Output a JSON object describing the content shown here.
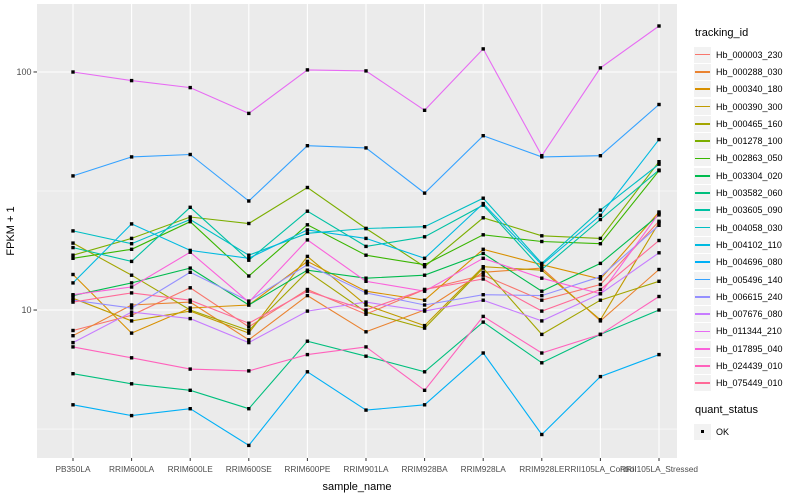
{
  "chart_data": {
    "type": "line",
    "title": "",
    "xlabel": "sample_name",
    "ylabel": "FPKM + 1",
    "y_scale": "log10",
    "ylim": [
      2.39,
      193
    ],
    "y_ticks": [
      10,
      100
    ],
    "y_minor_ticks": [
      3.162,
      31.62
    ],
    "grid": true,
    "legend_position": "right",
    "categories": [
      "PB350LA",
      "RRIM600LA",
      "RRIM600LE",
      "RRIM600SE",
      "RRIM600PE",
      "RRIM901LA",
      "RRIM928BA",
      "RRIM928LA",
      "RRIM928LE",
      "RRII105LA_Control",
      "RRII105LA_Stressed"
    ],
    "color_legend": {
      "title": "tracking_id"
    },
    "shape_legend": {
      "title": "quant_status",
      "items": [
        "OK"
      ]
    },
    "series": [
      {
        "name": "Hb_000003_230",
        "color": "#F8766D",
        "values": [
          8.2,
          9.5,
          12.4,
          8.5,
          12.2,
          9.6,
          12.2,
          14.0,
          11.0,
          12.8,
          23.6
        ]
      },
      {
        "name": "Hb_000288_030",
        "color": "#EA8331",
        "values": [
          7.8,
          10.5,
          10.8,
          7.5,
          11.5,
          8.1,
          10.0,
          14.4,
          15.0,
          9.0,
          14.8
        ]
      },
      {
        "name": "Hb_000340_180",
        "color": "#D89000",
        "values": [
          14.1,
          8.0,
          10.2,
          10.5,
          16.0,
          12.0,
          11.0,
          18.0,
          15.5,
          13.5,
          25.8
        ]
      },
      {
        "name": "Hb_000390_300",
        "color": "#C09B00",
        "values": [
          11.2,
          9.0,
          9.9,
          8.0,
          16.8,
          10.5,
          8.6,
          15.2,
          14.7,
          9.1,
          23.3
        ]
      },
      {
        "name": "Hb_000465_160",
        "color": "#A3A500",
        "values": [
          19.1,
          14.0,
          10.0,
          8.2,
          14.5,
          9.8,
          8.4,
          15.0,
          7.9,
          11.0,
          13.2
        ]
      },
      {
        "name": "Hb_001278_100",
        "color": "#7CAE00",
        "values": [
          17.0,
          20.0,
          24.6,
          23.1,
          32.7,
          22.0,
          15.2,
          24.4,
          20.5,
          20.0,
          42.0
        ]
      },
      {
        "name": "Hb_002863_050",
        "color": "#39B600",
        "values": [
          16.5,
          18.0,
          23.5,
          13.9,
          22.8,
          17.0,
          15.5,
          20.7,
          19.4,
          19.0,
          38.5
        ]
      },
      {
        "name": "Hb_003304_020",
        "color": "#00BB4E",
        "values": [
          11.5,
          13.0,
          15.0,
          10.5,
          14.7,
          13.6,
          14.0,
          17.3,
          12.0,
          15.7,
          25.1
        ]
      },
      {
        "name": "Hb_003582_060",
        "color": "#00BF7D",
        "values": [
          5.4,
          4.9,
          4.6,
          3.85,
          7.4,
          6.4,
          5.5,
          8.9,
          6.0,
          7.9,
          10.0
        ]
      },
      {
        "name": "Hb_003605_090",
        "color": "#00C1A3",
        "values": [
          18.3,
          16.0,
          27.0,
          16.2,
          26.0,
          18.5,
          20.3,
          27.6,
          14.8,
          24.0,
          38.7
        ]
      },
      {
        "name": "Hb_004058_030",
        "color": "#00BFC4",
        "values": [
          21.5,
          19.0,
          24.0,
          17.0,
          21.0,
          22.0,
          22.4,
          29.5,
          15.7,
          26.3,
          41.0
        ]
      },
      {
        "name": "Hb_004102_110",
        "color": "#00BAE0",
        "values": [
          13.0,
          23.0,
          17.8,
          16.5,
          21.7,
          20.0,
          16.5,
          28.0,
          15.5,
          25.0,
          52.0
        ]
      },
      {
        "name": "Hb_004696_080",
        "color": "#00B0F6",
        "values": [
          4.0,
          3.6,
          3.85,
          2.7,
          5.5,
          3.8,
          4.0,
          6.6,
          3.0,
          5.25,
          6.5
        ]
      },
      {
        "name": "Hb_005496_140",
        "color": "#35A2FF",
        "values": [
          36.6,
          44.0,
          45.0,
          28.7,
          49.0,
          48.0,
          31.0,
          54.0,
          44.0,
          44.5,
          73.0
        ]
      },
      {
        "name": "Hb_006615_240",
        "color": "#9590FF",
        "values": [
          11.0,
          10.2,
          14.4,
          10.9,
          15.5,
          11.8,
          10.5,
          11.6,
          11.5,
          13.8,
          22.7
        ]
      },
      {
        "name": "Hb_007676_080",
        "color": "#C77CFF",
        "values": [
          7.3,
          9.8,
          9.2,
          7.3,
          9.9,
          10.8,
          9.9,
          11.0,
          9.0,
          11.7,
          17.4
        ]
      },
      {
        "name": "Hb_011344_210",
        "color": "#E76BF3",
        "values": [
          100,
          92,
          86,
          67,
          102,
          101,
          69,
          125,
          44.5,
          104,
          156
        ]
      },
      {
        "name": "Hb_017895_040",
        "color": "#FA62DB",
        "values": [
          11.6,
          12.5,
          17.5,
          10.8,
          19.7,
          13.2,
          12.0,
          16.5,
          13.6,
          11.7,
          25.5
        ]
      },
      {
        "name": "Hb_024439_010",
        "color": "#FF62BC",
        "values": [
          7.0,
          6.3,
          5.65,
          5.55,
          6.5,
          7.0,
          4.6,
          9.4,
          6.6,
          7.9,
          11.4
        ]
      },
      {
        "name": "Hb_075449_010",
        "color": "#FF6A98",
        "values": [
          10.8,
          11.8,
          11.0,
          8.8,
          12.0,
          10.0,
          12.2,
          13.5,
          9.9,
          12.2,
          19.6
        ]
      }
    ]
  },
  "colors": {
    "panel_bg": "#EBEBEB",
    "grid": "#FFFFFF",
    "axis_text": "#4D4D4D",
    "tick_mark": "#333333",
    "point": "#000000",
    "legend_key_bg": "#F2F2F2"
  }
}
